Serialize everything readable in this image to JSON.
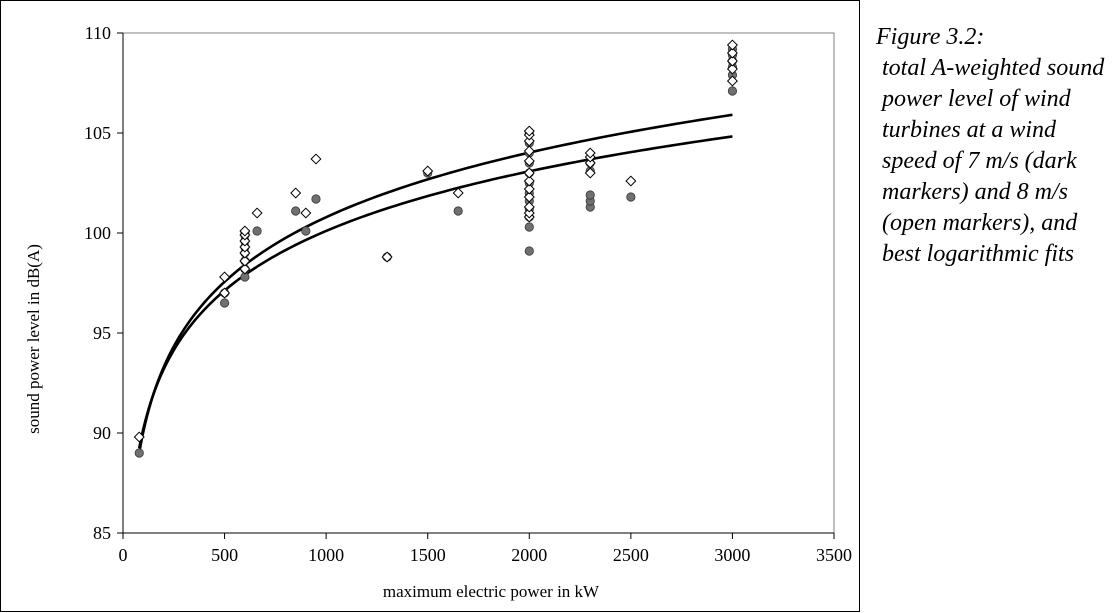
{
  "caption": {
    "title": "Figure 3.2:",
    "body": "total A-weighted sound power level of wind turbines at a wind speed of 7 m/s (dark markers) and 8 m/s (open markers), and best logarithmic fits"
  },
  "chart_data": {
    "type": "scatter",
    "title": "",
    "xlabel": "maximum electric power in kW",
    "ylabel": "sound power level in dB(A)",
    "xlim": [
      0,
      3500
    ],
    "ylim": [
      85,
      110
    ],
    "xticks": [
      0,
      500,
      1000,
      1500,
      2000,
      2500,
      3000,
      3500
    ],
    "yticks": [
      85,
      90,
      95,
      100,
      105,
      110
    ],
    "grid": false,
    "colors": {
      "dark_marker": "#707070",
      "open_marker": "#ffffff",
      "line": "#000000"
    },
    "series": [
      {
        "marker": "circle-filled",
        "points": [
          [
            80,
            89.0
          ],
          [
            500,
            96.5
          ],
          [
            500,
            97.0
          ],
          [
            600,
            97.8
          ],
          [
            600,
            98.2
          ],
          [
            600,
            98.6
          ],
          [
            600,
            99.0
          ],
          [
            600,
            99.3
          ],
          [
            600,
            99.6
          ],
          [
            600,
            99.9
          ],
          [
            600,
            100.0
          ],
          [
            660,
            100.1
          ],
          [
            850,
            101.1
          ],
          [
            900,
            100.1
          ],
          [
            950,
            101.7
          ],
          [
            1300,
            98.8
          ],
          [
            1500,
            103.0
          ],
          [
            1650,
            101.1
          ],
          [
            2000,
            99.1
          ],
          [
            2000,
            100.3
          ],
          [
            2000,
            100.8
          ],
          [
            2000,
            101.2
          ],
          [
            2000,
            101.6
          ],
          [
            2000,
            102.0
          ],
          [
            2000,
            102.5
          ],
          [
            2000,
            103.0
          ],
          [
            2000,
            103.5
          ],
          [
            2000,
            104.0
          ],
          [
            2000,
            104.5
          ],
          [
            2000,
            105.0
          ],
          [
            2300,
            101.3
          ],
          [
            2300,
            101.6
          ],
          [
            2300,
            101.9
          ],
          [
            2300,
            103.1
          ],
          [
            2300,
            103.5
          ],
          [
            2500,
            101.8
          ],
          [
            3000,
            107.1
          ],
          [
            3000,
            107.9
          ],
          [
            3000,
            108.3
          ],
          [
            3000,
            108.6
          ],
          [
            3000,
            108.9
          ],
          [
            3000,
            109.2
          ]
        ]
      },
      {
        "marker": "diamond-open",
        "points": [
          [
            80,
            89.8
          ],
          [
            500,
            97.0
          ],
          [
            500,
            97.8
          ],
          [
            600,
            98.2
          ],
          [
            600,
            98.6
          ],
          [
            600,
            99.0
          ],
          [
            600,
            99.3
          ],
          [
            600,
            99.6
          ],
          [
            600,
            99.9
          ],
          [
            600,
            100.1
          ],
          [
            660,
            101.0
          ],
          [
            850,
            102.0
          ],
          [
            900,
            101.0
          ],
          [
            950,
            103.7
          ],
          [
            1300,
            98.8
          ],
          [
            1500,
            103.1
          ],
          [
            1650,
            102.0
          ],
          [
            2000,
            100.8
          ],
          [
            2000,
            101.0
          ],
          [
            2000,
            101.3
          ],
          [
            2000,
            101.8
          ],
          [
            2000,
            102.2
          ],
          [
            2000,
            102.6
          ],
          [
            2000,
            103.0
          ],
          [
            2000,
            103.6
          ],
          [
            2000,
            104.1
          ],
          [
            2000,
            104.6
          ],
          [
            2000,
            104.9
          ],
          [
            2000,
            105.1
          ],
          [
            2300,
            103.0
          ],
          [
            2300,
            103.5
          ],
          [
            2300,
            103.8
          ],
          [
            2300,
            104.0
          ],
          [
            2500,
            102.6
          ],
          [
            3000,
            107.6
          ],
          [
            3000,
            108.2
          ],
          [
            3000,
            108.6
          ],
          [
            3000,
            109.0
          ],
          [
            3000,
            109.4
          ]
        ]
      }
    ],
    "fits": [
      {
        "type": "logarithmic",
        "a": 4.66,
        "b": 68.6,
        "x_range": [
          80,
          3000
        ]
      },
      {
        "type": "logarithmic",
        "a": 4.3,
        "b": 70.4,
        "x_range": [
          80,
          3000
        ]
      }
    ]
  }
}
